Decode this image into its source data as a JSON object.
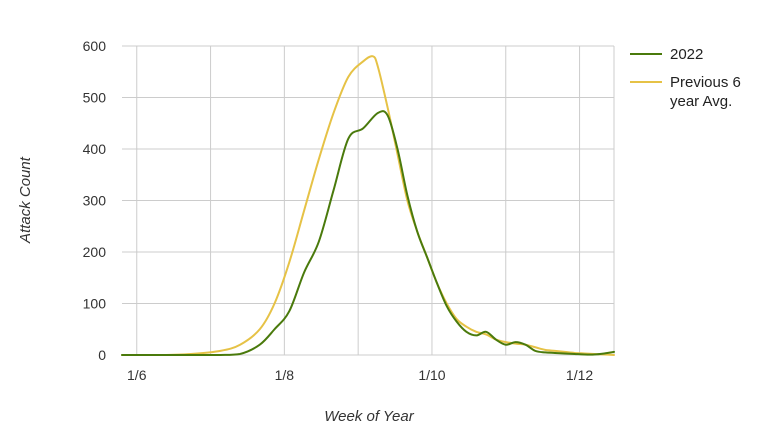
{
  "chart_data": {
    "type": "line",
    "title": "",
    "xlabel": "Week of Year",
    "ylabel": "Attack Count",
    "ylim": [
      0,
      600
    ],
    "yticks": [
      0,
      100,
      200,
      300,
      400,
      500,
      600
    ],
    "xlim": [
      0,
      100
    ],
    "xticks": [
      {
        "label": "1/6",
        "x": 3
      },
      {
        "label": "1/8",
        "x": 33
      },
      {
        "label": "1/10",
        "x": 63
      },
      {
        "label": "1/12",
        "x": 93
      }
    ],
    "grid": true,
    "legend_position": "right",
    "series": [
      {
        "name": "2022",
        "color": "#4a7a0c",
        "x": [
          0,
          8,
          14,
          20,
          24,
          28,
          31,
          34,
          37,
          40,
          43,
          46,
          49,
          52,
          54,
          56,
          58,
          60,
          62,
          64,
          66,
          68,
          70,
          72,
          74,
          76,
          78,
          80,
          82,
          84,
          86,
          88,
          90,
          92,
          94,
          96,
          98,
          100
        ],
        "values": [
          0,
          0,
          0,
          0,
          2,
          20,
          50,
          85,
          160,
          220,
          320,
          420,
          440,
          470,
          465,
          400,
          310,
          240,
          190,
          140,
          95,
          65,
          45,
          38,
          45,
          30,
          20,
          25,
          20,
          8,
          5,
          4,
          3,
          2,
          1,
          1,
          3,
          6
        ]
      },
      {
        "name": "Previous 6\nyear Avg.",
        "color": "#e6c246",
        "x": [
          0,
          8,
          14,
          20,
          24,
          28,
          31,
          34,
          37,
          40,
          43,
          46,
          49,
          51,
          52,
          54,
          56,
          58,
          60,
          62,
          64,
          66,
          68,
          70,
          72,
          74,
          76,
          78,
          80,
          82,
          84,
          86,
          88,
          90,
          92,
          94,
          96,
          98,
          100
        ],
        "values": [
          0,
          0,
          2,
          8,
          20,
          50,
          100,
          180,
          280,
          380,
          470,
          540,
          570,
          580,
          560,
          480,
          390,
          300,
          240,
          190,
          140,
          100,
          70,
          55,
          45,
          40,
          30,
          25,
          22,
          20,
          15,
          10,
          8,
          6,
          4,
          3,
          2,
          1,
          0
        ]
      }
    ]
  }
}
